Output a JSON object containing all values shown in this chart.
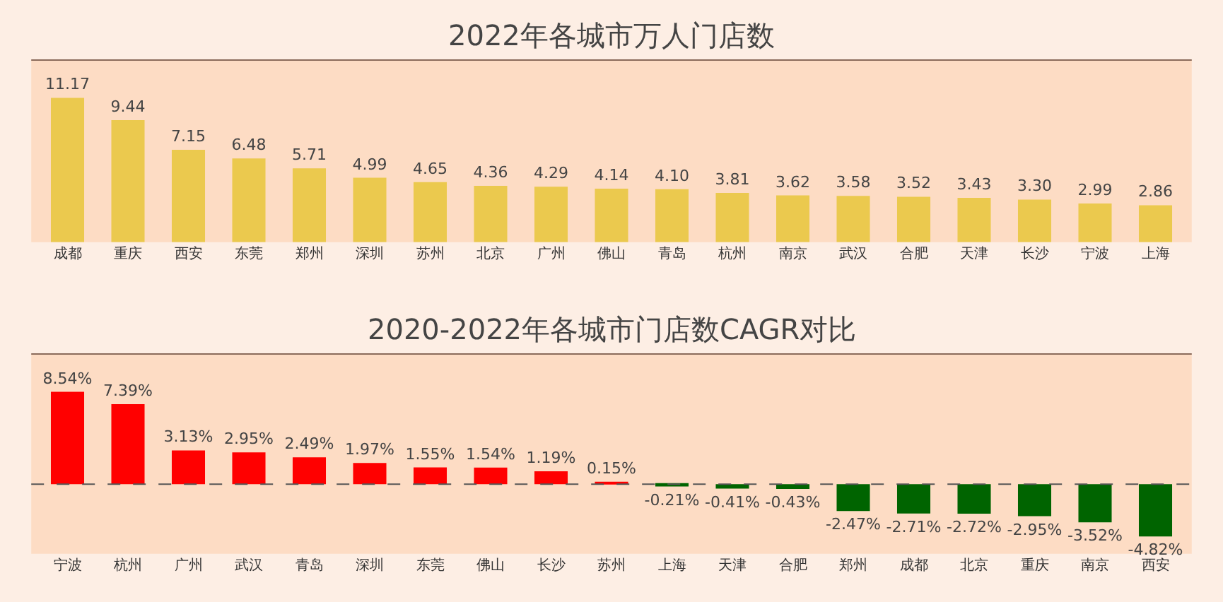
{
  "chart_data": [
    {
      "type": "bar",
      "title": "2022年各城市万人门店数",
      "categories": [
        "成都",
        "重庆",
        "西安",
        "东莞",
        "郑州",
        "深圳",
        "苏州",
        "北京",
        "广州",
        "佛山",
        "青岛",
        "杭州",
        "南京",
        "武汉",
        "合肥",
        "天津",
        "长沙",
        "宁波",
        "上海"
      ],
      "values": [
        11.17,
        9.44,
        7.15,
        6.48,
        5.71,
        4.99,
        4.65,
        4.36,
        4.29,
        4.14,
        4.1,
        3.81,
        3.62,
        3.58,
        3.52,
        3.43,
        3.3,
        2.99,
        2.86
      ],
      "value_labels": [
        "11.17",
        "9.44",
        "7.15",
        "6.48",
        "5.71",
        "4.99",
        "4.65",
        "4.36",
        "4.29",
        "4.14",
        "4.10",
        "3.81",
        "3.62",
        "3.58",
        "3.52",
        "3.43",
        "3.30",
        "2.99",
        "2.86"
      ],
      "color": "#ebc94e"
    },
    {
      "type": "bar",
      "title": "2020-2022年各城市门店数CAGR对比",
      "categories": [
        "宁波",
        "杭州",
        "广州",
        "武汉",
        "青岛",
        "深圳",
        "东莞",
        "佛山",
        "长沙",
        "苏州",
        "上海",
        "天津",
        "合肥",
        "郑州",
        "成都",
        "北京",
        "重庆",
        "南京",
        "西安"
      ],
      "values": [
        8.54,
        7.39,
        3.13,
        2.95,
        2.49,
        1.97,
        1.55,
        1.54,
        1.19,
        0.15,
        -0.21,
        -0.41,
        -0.43,
        -2.47,
        -2.71,
        -2.72,
        -2.95,
        -3.52,
        -4.82
      ],
      "value_labels": [
        "8.54%",
        "7.39%",
        "3.13%",
        "2.95%",
        "2.49%",
        "1.97%",
        "1.55%",
        "1.54%",
        "1.19%",
        "0.15%",
        "-0.21%",
        "-0.41%",
        "-0.43%",
        "-2.47%",
        "-2.71%",
        "-2.72%",
        "-2.95%",
        "-3.52%",
        "-4.82%"
      ],
      "colors": [
        "#ff0000",
        "#ff0000",
        "#ff0000",
        "#ff0000",
        "#ff0000",
        "#ff0000",
        "#ff0000",
        "#ff0000",
        "#ff0000",
        "#ff0000",
        "#006400",
        "#006400",
        "#006400",
        "#006400",
        "#006400",
        "#006400",
        "#006400",
        "#006400",
        "#006400"
      ],
      "ref_lines": [
        {
          "axis": "y",
          "value": 0,
          "label": null,
          "line_style": "dashed",
          "color": "#555555"
        }
      ]
    }
  ]
}
